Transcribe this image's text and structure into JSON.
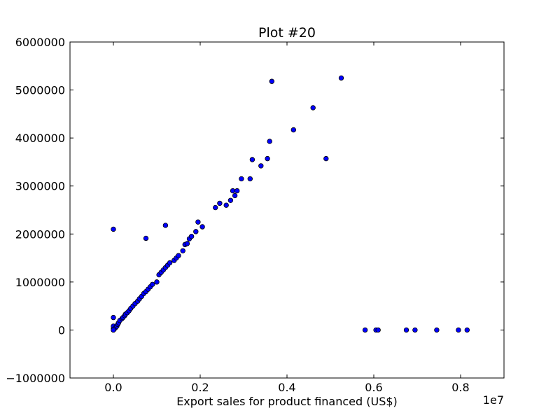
{
  "chart_data": {
    "type": "scatter",
    "title": "Plot #20",
    "xlabel": "Export sales for product financed (US$)",
    "ylabel": "",
    "x_offset_label": "1e7",
    "xlim": [
      -1000000,
      9000000
    ],
    "ylim": [
      -1000000,
      6000000
    ],
    "x_ticks": [
      {
        "value": 0,
        "label": "0.0"
      },
      {
        "value": 2000000,
        "label": "0.2"
      },
      {
        "value": 4000000,
        "label": "0.4"
      },
      {
        "value": 6000000,
        "label": "0.6"
      },
      {
        "value": 8000000,
        "label": "0.8"
      }
    ],
    "y_ticks": [
      {
        "value": -1000000,
        "label": "−1000000"
      },
      {
        "value": 0,
        "label": "0"
      },
      {
        "value": 1000000,
        "label": "1000000"
      },
      {
        "value": 2000000,
        "label": "2000000"
      },
      {
        "value": 3000000,
        "label": "3000000"
      },
      {
        "value": 4000000,
        "label": "4000000"
      },
      {
        "value": 5000000,
        "label": "5000000"
      },
      {
        "value": 6000000,
        "label": "6000000"
      }
    ],
    "grid": false,
    "marker_color": "#0000ff",
    "marker_edge_color": "#000000",
    "x": [
      0,
      0,
      0,
      0,
      20000,
      50000,
      80000,
      100000,
      120000,
      150000,
      200000,
      220000,
      260000,
      280000,
      320000,
      360000,
      400000,
      450000,
      500000,
      560000,
      600000,
      650000,
      700000,
      750000,
      800000,
      850000,
      900000,
      1000000,
      1050000,
      1100000,
      1150000,
      1200000,
      1250000,
      1300000,
      1400000,
      1450000,
      1500000,
      1600000,
      1650000,
      1700000,
      1750000,
      1800000,
      1900000,
      1950000,
      2050000,
      2350000,
      2450000,
      2600000,
      2700000,
      2750000,
      2800000,
      2850000,
      2950000,
      3150000,
      3200000,
      3400000,
      3550000,
      3600000,
      3650000,
      4150000,
      4600000,
      4900000,
      5250000,
      0,
      750000,
      1200000,
      0,
      5800000,
      6050000,
      6100000,
      6750000,
      6950000,
      7450000,
      7950000,
      8150000
    ],
    "y": [
      0,
      30000,
      80000,
      260000,
      20000,
      50000,
      80000,
      120000,
      150000,
      200000,
      240000,
      260000,
      300000,
      330000,
      360000,
      400000,
      450000,
      500000,
      550000,
      600000,
      650000,
      700000,
      760000,
      800000,
      850000,
      900000,
      950000,
      1000000,
      1150000,
      1200000,
      1250000,
      1300000,
      1350000,
      1400000,
      1450000,
      1500000,
      1550000,
      1650000,
      1780000,
      1800000,
      1900000,
      1950000,
      2050000,
      2250000,
      2150000,
      2550000,
      2640000,
      2600000,
      2700000,
      2900000,
      2800000,
      2900000,
      3150000,
      3150000,
      3550000,
      3420000,
      3570000,
      3930000,
      5180000,
      4170000,
      4630000,
      3570000,
      5250000,
      2100000,
      1910000,
      2180000,
      0,
      0,
      0,
      0,
      0,
      0,
      0,
      0,
      0
    ]
  }
}
